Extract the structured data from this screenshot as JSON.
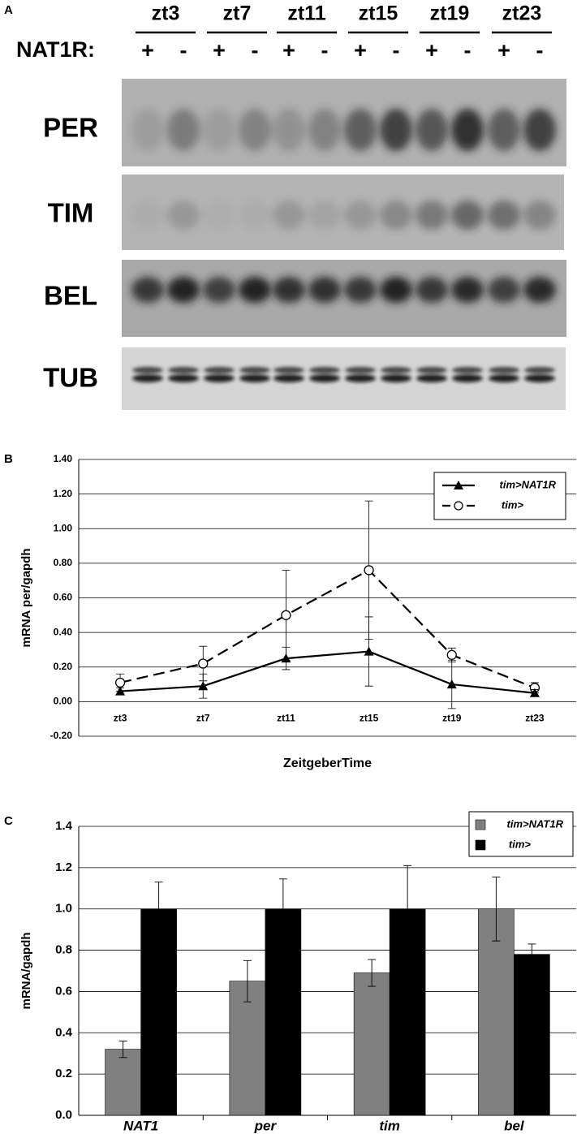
{
  "panel_labels": [
    "A",
    "B",
    "C"
  ],
  "blot": {
    "groups": [
      "zt3",
      "zt7",
      "zt11",
      "zt15",
      "zt19",
      "zt23"
    ],
    "genotype_label": "NAT1R:",
    "lanes": [
      "+",
      "-",
      "+",
      "-",
      "+",
      "-",
      "+",
      "-",
      "+",
      "-",
      "+",
      "-"
    ],
    "rows": [
      "PER",
      "TIM",
      "BEL",
      "TUB"
    ]
  },
  "chart_data": [
    {
      "type": "line",
      "ylabel": "mRNA per/gapdh",
      "xlabel": "ZeitgeberTime",
      "categories": [
        "zt3",
        "zt7",
        "zt11",
        "zt15",
        "zt19",
        "zt23"
      ],
      "series": [
        {
          "name": "tim>NAT1R",
          "color": "#000000",
          "marker": "triangle",
          "dash": "solid",
          "values": [
            0.06,
            0.09,
            0.25,
            0.29,
            0.1,
            0.05
          ],
          "errors": [
            0.02,
            0.07,
            0.065,
            0.2,
            0.14,
            0.02
          ]
        },
        {
          "name": "tim>",
          "color": "#000000",
          "marker": "circle",
          "dash": "dashed",
          "values": [
            0.11,
            0.22,
            0.5,
            0.76,
            0.27,
            0.08
          ],
          "errors": [
            0.05,
            0.1,
            0.26,
            0.4,
            0.04,
            0.03
          ]
        }
      ],
      "ylim": [
        -0.2,
        1.4
      ],
      "yticks": [
        {
          "value": -0.2,
          "label": "-0.20"
        },
        {
          "value": 0,
          "label": "0.00"
        },
        {
          "value": 0.2,
          "label": "0.20"
        },
        {
          "value": 0.4,
          "label": "0.40"
        },
        {
          "value": 0.6,
          "label": "0.60"
        },
        {
          "value": 0.8,
          "label": "0.80"
        },
        {
          "value": 1,
          "label": "1.00"
        },
        {
          "value": 1.2,
          "label": "1.20"
        },
        {
          "value": 1.4,
          "label": "1.40"
        }
      ],
      "grid": true,
      "legend": "upper right"
    },
    {
      "type": "bar",
      "ylabel": "mRNA/gapdh",
      "categories": [
        "NAT1",
        "per",
        "tim",
        "bel"
      ],
      "series": [
        {
          "name": "tim>NAT1R",
          "color": "#808080",
          "values": [
            0.32,
            0.65,
            0.69,
            1.0
          ],
          "errors": [
            0.04,
            0.1,
            0.065,
            0.155
          ]
        },
        {
          "name": "tim>",
          "color": "#000000",
          "values": [
            1.0,
            1.0,
            1.0,
            0.78
          ],
          "errors": [
            0.13,
            0.145,
            0.21,
            0.05
          ]
        }
      ],
      "ylim": [
        0,
        1.4
      ],
      "yticks": [
        {
          "value": 0,
          "label": "0.0"
        },
        0.2,
        0.4,
        0.6,
        0.8,
        {
          "value": 1,
          "label": "1.0"
        },
        1.2,
        1.4
      ],
      "grid": true,
      "legend": "upper right"
    }
  ]
}
